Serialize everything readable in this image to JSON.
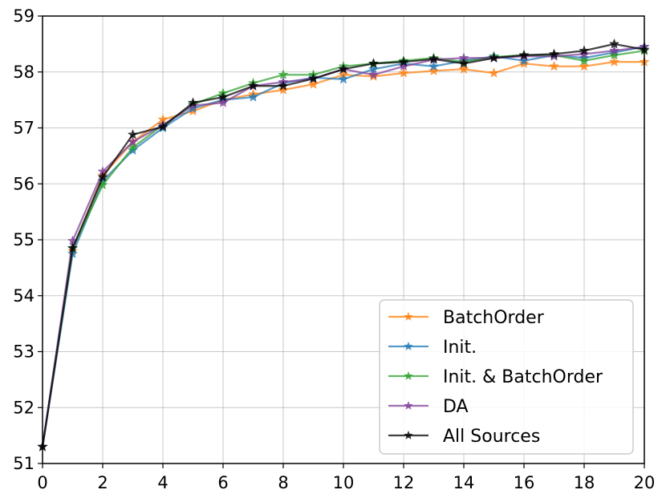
{
  "chart_data": {
    "type": "line",
    "title": "",
    "xlabel": "",
    "ylabel": "",
    "xlim": [
      0,
      20
    ],
    "ylim": [
      51,
      59
    ],
    "xticks": [
      "0",
      "2",
      "4",
      "6",
      "8",
      "10",
      "12",
      "14",
      "16",
      "18",
      "20"
    ],
    "yticks": [
      "51",
      "52",
      "53",
      "54",
      "55",
      "56",
      "57",
      "58",
      "59"
    ],
    "grid": true,
    "legend_position": "bottom-right",
    "x": [
      0,
      1,
      2,
      3,
      4,
      5,
      6,
      7,
      8,
      9,
      10,
      11,
      12,
      13,
      14,
      15,
      16,
      17,
      18,
      19,
      20
    ],
    "series": [
      {
        "name": "BatchOrder",
        "color": "#ff7f0e",
        "marker": "star",
        "values": [
          51.3,
          54.8,
          56.15,
          56.75,
          57.15,
          57.3,
          57.5,
          57.6,
          57.68,
          57.78,
          57.95,
          57.92,
          57.98,
          58.02,
          58.05,
          57.98,
          58.15,
          58.1,
          58.1,
          58.18,
          58.18
        ]
      },
      {
        "name": "Init.",
        "color": "#1f77b4",
        "marker": "star",
        "values": [
          51.3,
          54.75,
          56.05,
          56.6,
          57.0,
          57.35,
          57.5,
          57.55,
          57.8,
          57.9,
          57.87,
          58.05,
          58.15,
          58.1,
          58.2,
          58.28,
          58.2,
          58.3,
          58.25,
          58.35,
          58.45
        ]
      },
      {
        "name": "Init. & BatchOrder",
        "color": "#2ca02c",
        "marker": "star",
        "values": [
          51.3,
          54.85,
          55.98,
          56.65,
          57.05,
          57.42,
          57.62,
          57.8,
          57.95,
          57.95,
          58.1,
          58.15,
          58.2,
          58.25,
          58.18,
          58.27,
          58.3,
          58.3,
          58.2,
          58.3,
          58.38
        ]
      },
      {
        "name": "DA",
        "color": "#7f3f98",
        "marker": "star",
        "values": [
          51.3,
          54.98,
          56.22,
          56.75,
          57.05,
          57.4,
          57.45,
          57.75,
          57.82,
          57.88,
          58.05,
          57.95,
          58.1,
          58.22,
          58.25,
          58.25,
          58.28,
          58.28,
          58.32,
          58.38,
          58.45
        ]
      },
      {
        "name": "All Sources",
        "color": "#000000",
        "marker": "star",
        "values": [
          51.3,
          54.85,
          56.12,
          56.88,
          57.02,
          57.45,
          57.55,
          57.75,
          57.75,
          57.88,
          58.05,
          58.15,
          58.18,
          58.23,
          58.15,
          58.25,
          58.3,
          58.32,
          58.38,
          58.5,
          58.4
        ]
      }
    ]
  }
}
